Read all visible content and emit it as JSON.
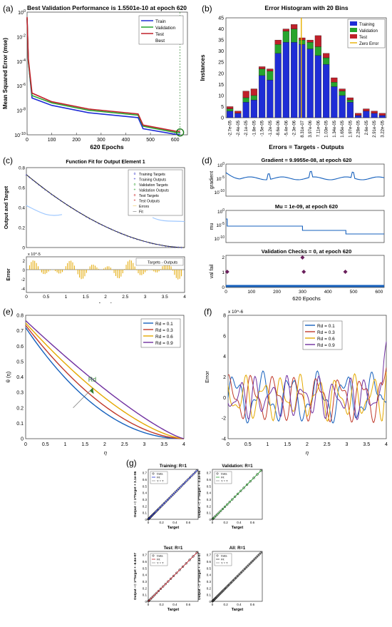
{
  "panel_labels": {
    "a": "(a)",
    "b": "(b)",
    "c": "(c)",
    "d": "(d)",
    "e": "(e)",
    "f": "(f)",
    "g": "(g)"
  },
  "colors": {
    "train": "#1f2dd6",
    "validation": "#27a42d",
    "test": "#c0202a",
    "zero": "#e8b000",
    "blue": "#1560bd",
    "yellow": "#e4a800",
    "purple": "#7030a0"
  },
  "chart_data": [
    {
      "id": "a",
      "type": "line",
      "title": "Best Validation Performance is 1.5501e-10 at epoch 620",
      "xlabel": "620 Epochs",
      "ylabel": "Mean Squared Error  (mse)",
      "xlim": [
        0,
        650
      ],
      "ylog": true,
      "xticks": [
        "0",
        "100",
        "200",
        "300",
        "400",
        "500",
        "600"
      ],
      "yticks": [
        "10^0",
        "10^-2",
        "10^-4",
        "10^-6",
        "10^-8",
        "10^-10"
      ],
      "legend": [
        "Train",
        "Validation",
        "Test",
        "Best"
      ],
      "series": [
        {
          "name": "Train",
          "x": [
            0,
            5,
            20,
            100,
            250,
            450,
            470,
            600,
            620
          ],
          "y": [
            -0.5,
            -4,
            -7,
            -7.6,
            -8.2,
            -8.6,
            -9.5,
            -9.95,
            -9.96
          ]
        },
        {
          "name": "Validation",
          "x": [
            0,
            5,
            20,
            100,
            250,
            450,
            470,
            600,
            620
          ],
          "y": [
            -0.5,
            -4,
            -6.8,
            -7.4,
            -8.0,
            -8.4,
            -9.3,
            -9.8,
            -9.81
          ]
        },
        {
          "name": "Test",
          "x": [
            0,
            5,
            20,
            100,
            250,
            450,
            470,
            600,
            620
          ],
          "y": [
            -0.4,
            -3.8,
            -6.6,
            -7.3,
            -7.9,
            -8.3,
            -9.2,
            -9.7,
            -9.71
          ]
        }
      ],
      "best": {
        "x": 620,
        "y": -9.81
      }
    },
    {
      "id": "b",
      "type": "bar",
      "title": "Error Histogram with 20 Bins",
      "xlabel": "Errors = Targets - Outputs",
      "ylabel": "Instances",
      "ylim": [
        0,
        45
      ],
      "yticks": [
        "0",
        "5",
        "10",
        "15",
        "20",
        "25",
        "30",
        "35",
        "40",
        "45"
      ],
      "categories": [
        "-2.7e-05",
        "-2.4e-05",
        "-2.1e-05",
        "-1.8e-05",
        "-1.5e-05",
        "-1.2e-05",
        "-8.6e-06",
        "-5.4e-06",
        "-2.3e-06",
        "8.31e-07",
        "3.97e-06",
        "7.11e-06",
        "1.03e-05",
        "1.34e-05",
        "1.65e-05",
        "1.97e-05",
        "2.28e-05",
        "2.6e-05",
        "2.91e-05",
        "3.22e-05"
      ],
      "series": [
        {
          "name": "Training",
          "values": [
            3,
            2,
            7,
            8,
            19,
            17,
            29,
            34,
            34,
            33,
            31,
            28,
            24,
            14,
            10,
            7,
            1,
            3,
            2,
            1
          ]
        },
        {
          "name": "Validation",
          "values": [
            1,
            0,
            2,
            2,
            3,
            4,
            4,
            5,
            6,
            2,
            3,
            4,
            3,
            2,
            2,
            1,
            0,
            0,
            0,
            0
          ]
        },
        {
          "name": "Test",
          "values": [
            1,
            1,
            3,
            3,
            1,
            1,
            2,
            1,
            2,
            1,
            1,
            5,
            2,
            2,
            1,
            1,
            1,
            1,
            1,
            1
          ]
        }
      ],
      "legend": [
        "Training",
        "Validation",
        "Test",
        "Zero Error"
      ],
      "zero_index": 9
    },
    {
      "id": "c",
      "type": "line",
      "title": "Function Fit for Output Element 1",
      "ylabel": "Output and Target",
      "xlabel": "Input",
      "error_ylabel": "Error",
      "xlim": [
        0,
        4
      ],
      "ylim": [
        0,
        0.8
      ],
      "xticks": [
        "0",
        "0.5",
        "1",
        "1.5",
        "2",
        "2.5",
        "3",
        "3.5",
        "4"
      ],
      "yticks": [
        "0",
        "0.2",
        "0.4",
        "0.6",
        "0.8"
      ],
      "legend": [
        "Training Targets",
        "Training Outputs",
        "Validation Targets",
        "Validation Outputs",
        "Test Targets",
        "Test Outputs",
        "Errors",
        "Fit"
      ],
      "error_legend": "Targets - Outputs",
      "error_scale": "x 10^-5",
      "error_yticks": [
        "2",
        "0",
        "-2",
        "-4"
      ]
    },
    {
      "id": "d",
      "type": "line",
      "titles": [
        "Gradient = 9.9955e-08, at epoch 620",
        "Mu = 1e-09, at epoch 620",
        "Validation Checks = 0, at epoch 620"
      ],
      "ylabels": [
        "gradient",
        "mu",
        "val fail"
      ],
      "xlabel": "620 Epochs",
      "xticks": [
        "0",
        "100",
        "200",
        "300",
        "400",
        "500",
        "600"
      ],
      "gradient_yticks": [
        "10^0",
        "10^-5",
        "10^-10"
      ],
      "mu_yticks": [
        "10^0",
        "10^-5",
        "10^-10"
      ],
      "val_yticks": [
        "0",
        "1",
        "2"
      ],
      "val_points": [
        {
          "x": 5,
          "y": 1
        },
        {
          "x": 300,
          "y": 2
        },
        {
          "x": 305,
          "y": 1
        },
        {
          "x": 468,
          "y": 1
        }
      ]
    },
    {
      "id": "e",
      "type": "line",
      "xlabel": "η",
      "ylabel": "θ (η)",
      "xlim": [
        0,
        4
      ],
      "ylim": [
        0,
        0.8
      ],
      "xticks": [
        "0",
        "0.5",
        "1",
        "1.5",
        "2",
        "2.5",
        "3",
        "3.5",
        "4"
      ],
      "yticks": [
        "0",
        "0.1",
        "0.2",
        "0.3",
        "0.4",
        "0.5",
        "0.6",
        "0.7",
        "0.8"
      ],
      "annotation": "Rd",
      "series": [
        {
          "name": "Rd = 0.1",
          "theta0": 0.72
        },
        {
          "name": "Rd = 0.3",
          "theta0": 0.735
        },
        {
          "name": "Rd = 0.6",
          "theta0": 0.75
        },
        {
          "name": "Rd = 0.9",
          "theta0": 0.765
        }
      ]
    },
    {
      "id": "f",
      "type": "line",
      "xlabel": "η",
      "ylabel": "Error",
      "yscale": "x 10^-6",
      "xlim": [
        0,
        4
      ],
      "ylim": [
        -4,
        8
      ],
      "xticks": [
        "0",
        "0.5",
        "1",
        "1.5",
        "2",
        "2.5",
        "3",
        "3.5",
        "4"
      ],
      "yticks": [
        "-4",
        "-2",
        "0",
        "2",
        "4",
        "6",
        "8"
      ],
      "series": [
        {
          "name": "Rd = 0.1"
        },
        {
          "name": "Rd = 0.3"
        },
        {
          "name": "Rd = 0.6"
        },
        {
          "name": "Rd = 0.9"
        }
      ]
    },
    {
      "id": "g",
      "type": "scatter",
      "plots": [
        {
          "title": "Training: R=1",
          "ylabel": "Output ~= 1*Target + 3.1e-06",
          "fitcolor": "#1f2dd6"
        },
        {
          "title": "Validation: R=1",
          "ylabel": "Output ~= 1*Target + -3.4e-06",
          "fitcolor": "#27a42d"
        },
        {
          "title": "Test: R=1",
          "ylabel": "Output ~= 1*Target + -6.6e-07",
          "fitcolor": "#c0202a"
        },
        {
          "title": "All: R=1",
          "ylabel": "Output ~= 1*Target + -4.4e-07",
          "fitcolor": "#444444"
        }
      ],
      "xlabel": "Target",
      "ticks": [
        "0",
        "0.1",
        "0.2",
        "0.3",
        "0.4",
        "0.5",
        "0.6",
        "0.7"
      ],
      "xticks": [
        "0",
        "0.2",
        "0.4",
        "0.6"
      ],
      "legend": [
        "Data",
        "Fit",
        "Y = T"
      ]
    }
  ]
}
